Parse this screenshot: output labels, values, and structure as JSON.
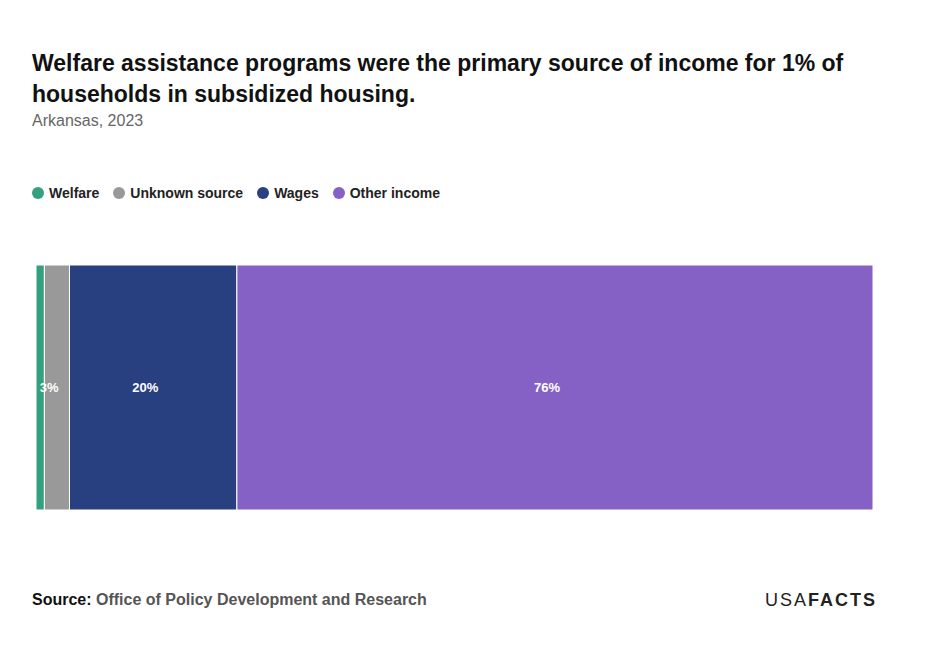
{
  "chart_data": {
    "type": "bar",
    "title": "Welfare assistance programs were the primary source of income for 1% of households in subsidized housing.",
    "subtitle": "Arkansas, 2023",
    "categories": [
      "Welfare",
      "Unknown source",
      "Wages",
      "Other income"
    ],
    "values": [
      1,
      3,
      20,
      76
    ],
    "value_labels": [
      null,
      "3%",
      "20%",
      "76%"
    ],
    "colors": [
      "#35a07f",
      "#999999",
      "#283f80",
      "#8561c5"
    ],
    "xlim": [
      0,
      100
    ],
    "orientation": "horizontal",
    "stacked": true,
    "data_labels": true,
    "tick_labels": false,
    "legend": "top-left",
    "source_label": "Source:",
    "source": "Office of Policy Development and Research",
    "logo": [
      "USA",
      "FACTS"
    ]
  }
}
